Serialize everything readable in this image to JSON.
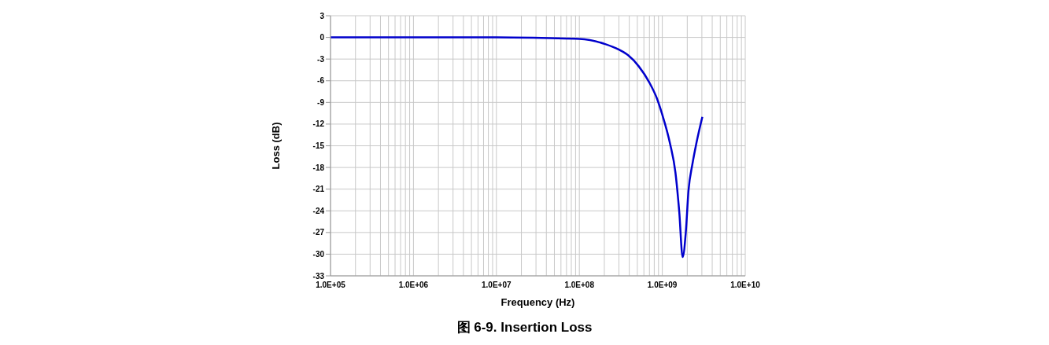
{
  "chart_data": {
    "type": "line",
    "title": "图 6-9. Insertion Loss",
    "xlabel": "Frequency (Hz)",
    "ylabel": "Loss (dB)",
    "log": "x",
    "grid": true,
    "marker": "none",
    "line_style": "solid",
    "x": [
      100000,
      1000000,
      10000000,
      44000000,
      100000000,
      202000000,
      300000000,
      390000000,
      520000000,
      695000000,
      865000000,
      1000000000,
      1240000000,
      1440000000,
      1600000000,
      1760000000,
      1920000000,
      2070000000,
      2310000000,
      2570000000,
      3040000000
    ],
    "series": [
      {
        "color": "#0000cc",
        "values": [
          0,
          0,
          0,
          -0.1,
          -0.2,
          -0.9,
          -1.7,
          -2.5,
          -4.0,
          -6.2,
          -8.5,
          -10.7,
          -14.7,
          -18.7,
          -24.1,
          -30.4,
          -27,
          -21.2,
          -17.5,
          -14.7,
          -11.0
        ]
      }
    ],
    "xlim": [
      100000,
      10000000000
    ],
    "xticks": [
      {
        "value": 100000,
        "label": "1.0E+05"
      },
      {
        "value": 200000,
        "label": null
      },
      {
        "value": 300000,
        "label": null
      },
      {
        "value": 400000,
        "label": null
      },
      {
        "value": 500000,
        "label": null
      },
      {
        "value": 600000,
        "label": null
      },
      {
        "value": 700000,
        "label": null
      },
      {
        "value": 800000,
        "label": null
      },
      {
        "value": 900000,
        "label": null
      },
      {
        "value": 1000000,
        "label": "1.0E+06"
      },
      {
        "value": 2000000,
        "label": null
      },
      {
        "value": 3000000,
        "label": null
      },
      {
        "value": 4000000,
        "label": null
      },
      {
        "value": 5000000,
        "label": null
      },
      {
        "value": 6000000,
        "label": null
      },
      {
        "value": 7000000,
        "label": null
      },
      {
        "value": 8000000,
        "label": null
      },
      {
        "value": 9000000,
        "label": null
      },
      {
        "value": 10000000,
        "label": "1.0E+07"
      },
      {
        "value": 20000000,
        "label": null
      },
      {
        "value": 30000000,
        "label": null
      },
      {
        "value": 40000000,
        "label": null
      },
      {
        "value": 50000000,
        "label": null
      },
      {
        "value": 60000000,
        "label": null
      },
      {
        "value": 70000000,
        "label": null
      },
      {
        "value": 80000000,
        "label": null
      },
      {
        "value": 90000000,
        "label": null
      },
      {
        "value": 100000000,
        "label": "1.0E+08"
      },
      {
        "value": 200000000,
        "label": null
      },
      {
        "value": 300000000,
        "label": null
      },
      {
        "value": 400000000,
        "label": null
      },
      {
        "value": 500000000,
        "label": null
      },
      {
        "value": 600000000,
        "label": null
      },
      {
        "value": 700000000,
        "label": null
      },
      {
        "value": 800000000,
        "label": null
      },
      {
        "value": 900000000,
        "label": null
      },
      {
        "value": 1000000000,
        "label": "1.0E+09"
      },
      {
        "value": 2000000000,
        "label": null
      },
      {
        "value": 3000000000,
        "label": null
      },
      {
        "value": 4000000000,
        "label": null
      },
      {
        "value": 5000000000,
        "label": null
      },
      {
        "value": 6000000000,
        "label": null
      },
      {
        "value": 7000000000,
        "label": null
      },
      {
        "value": 8000000000,
        "label": null
      },
      {
        "value": 9000000000,
        "label": null
      },
      {
        "value": 10000000000,
        "label": "1.0E+10"
      }
    ],
    "ylim": [
      -33,
      3
    ],
    "yticks": [
      3,
      0,
      -3,
      -6,
      -9,
      -12,
      -15,
      -18,
      -21,
      -24,
      -27,
      -30,
      -33
    ]
  }
}
